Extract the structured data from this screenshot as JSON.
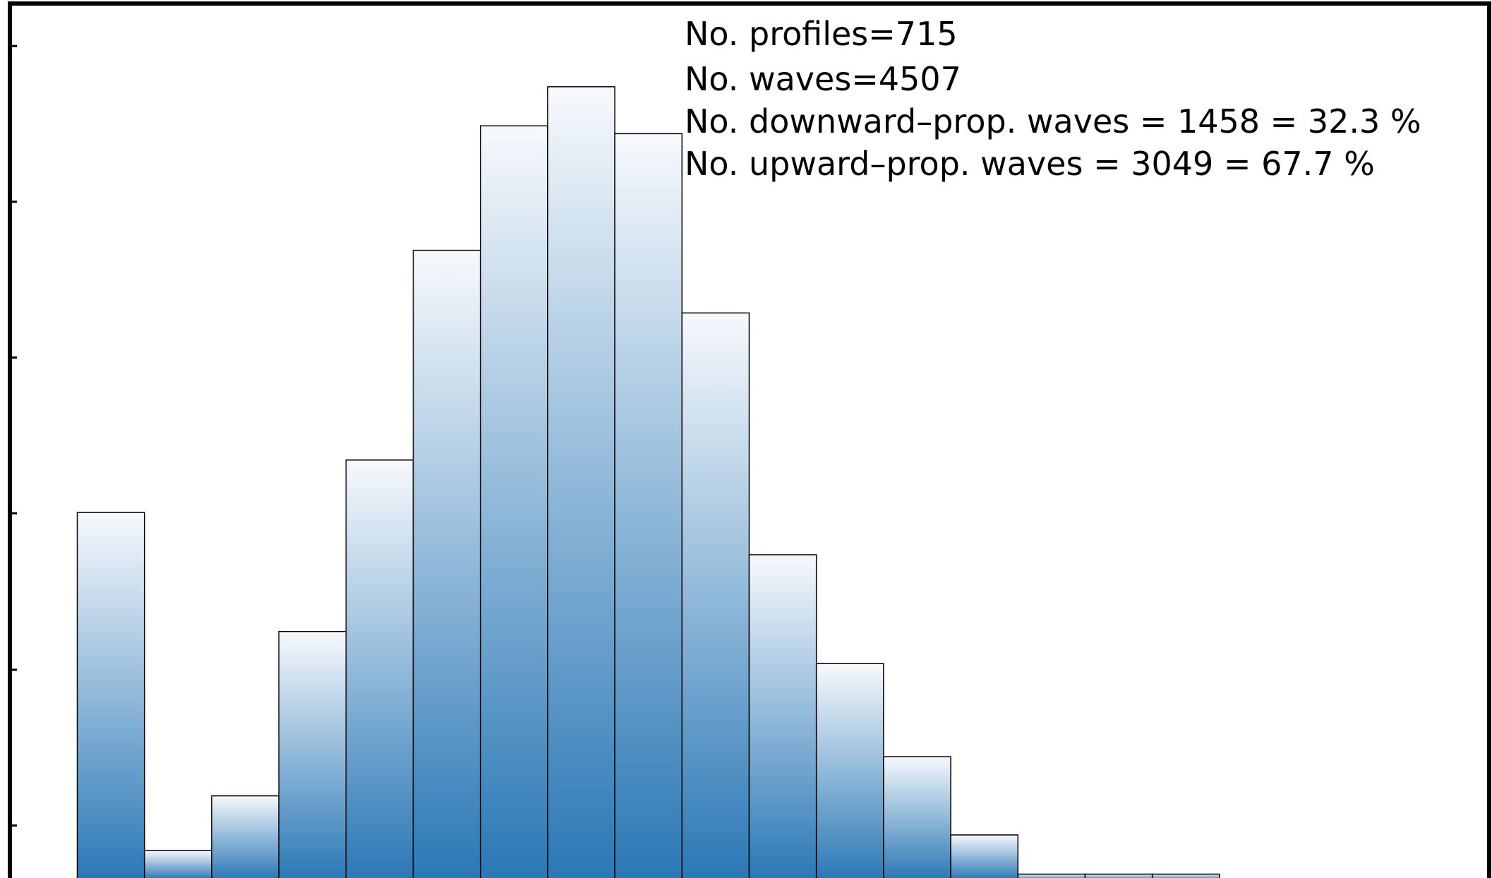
{
  "chart_data": {
    "type": "bar",
    "title": "",
    "xlabel": "",
    "ylabel": "",
    "values": [
      467,
      35,
      105,
      315,
      534,
      802,
      961,
      1011,
      951,
      722,
      413,
      274,
      155,
      55,
      5,
      5,
      5
    ],
    "ylim": [
      0,
      1065
    ],
    "y_ticks": [
      67,
      266,
      466,
      665,
      864,
      1063
    ],
    "grid": false,
    "bar_color_gradient": [
      "#f7f9fc",
      "#2a78b6"
    ],
    "edge_color": "#000000",
    "annotations": [
      "No. profiles=715",
      "No. waves=4507",
      "No. downward–prop. waves = 1458 =  32.3 %",
      "No. upward–prop. waves = 3049 =  67.7 %"
    ]
  }
}
